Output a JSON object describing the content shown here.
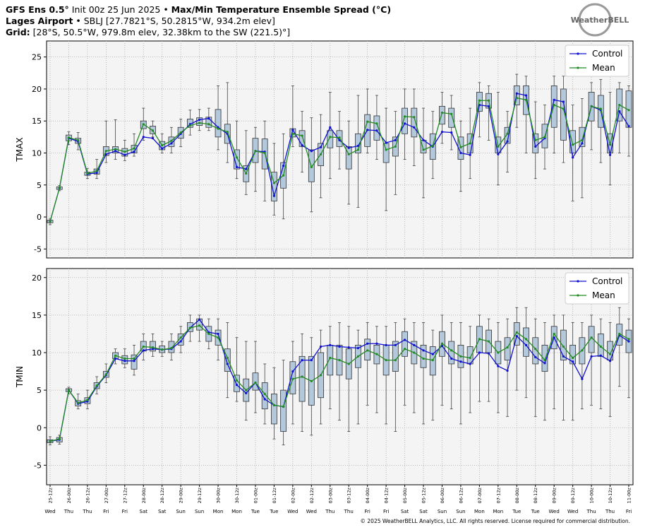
{
  "header": {
    "line1": [
      "GFS Ens 0.5°",
      " Init 00z 25 Jun 2025 • ",
      "Max/Min Temperature Ensemble Spread (°C)"
    ],
    "line2": [
      "Lages Airport",
      " • SBLJ [27.7821°S, 50.2815°W, 934.2m elev]"
    ],
    "line3": [
      "Grid:",
      " [28°S, 50.5°W, 979.8m elev, 32.38km to the SW (221.5)°]"
    ],
    "logo": "WeatherBELL"
  },
  "footer": "© 2025 WeatherBELL Analytics, LLC. All rights reserved. License required for commercial distribution.",
  "chart_data": [
    {
      "type": "box",
      "ylabel": "TMAX",
      "ylim": [
        -6.4,
        27.5
      ],
      "yticks": [
        -5,
        0,
        5,
        10,
        15,
        20,
        25
      ],
      "grid": true,
      "legend": "upper right",
      "boxes": {
        "color": "#b4c8dc",
        "whisker_low": [
          -1.2,
          4.1,
          11.3,
          10.5,
          6.0,
          6.0,
          8.5,
          9.0,
          8.8,
          9.5,
          12.0,
          12.5,
          10.0,
          10.0,
          11.0,
          12.8,
          13.5,
          13.5,
          10.5,
          8.5,
          6.0,
          3.5,
          4.0,
          2.5,
          0.3,
          -0.3,
          11.0,
          7.0,
          0.8,
          3.0,
          6.0,
          7.5,
          2.0,
          1.5,
          10.0,
          9.0,
          1.0,
          3.5,
          9.0,
          8.0,
          3.0,
          6.0,
          11.5,
          10.5,
          4.0,
          6.0,
          12.5,
          12.0,
          5.0,
          7.0,
          14.0,
          10.0,
          6.0,
          7.5,
          10.0,
          8.5,
          2.5,
          3.0,
          10.5,
          8.5,
          5.0,
          10.0,
          9.5
        ],
        "q1": [
          -0.9,
          4.3,
          11.9,
          11.5,
          6.5,
          6.7,
          9.6,
          10.0,
          9.5,
          10.0,
          13.8,
          13.0,
          10.5,
          11.0,
          12.3,
          14.0,
          14.3,
          14.0,
          12.5,
          11.5,
          7.5,
          5.5,
          8.5,
          7.5,
          2.5,
          4.5,
          12.5,
          11.0,
          5.5,
          8.0,
          10.8,
          11.0,
          7.5,
          10.0,
          11.0,
          12.0,
          8.5,
          9.5,
          13.0,
          12.5,
          10.0,
          9.0,
          14.5,
          14.0,
          9.0,
          10.0,
          16.5,
          17.0,
          10.0,
          11.5,
          17.5,
          16.0,
          10.0,
          10.8,
          14.0,
          12.0,
          10.0,
          11.0,
          15.0,
          14.0,
          10.0,
          15.0,
          14.0
        ],
        "q3": [
          -0.5,
          4.7,
          12.8,
          12.3,
          7.0,
          7.5,
          11.0,
          11.0,
          10.7,
          11.2,
          15.0,
          14.2,
          11.8,
          12.5,
          14.0,
          15.3,
          15.5,
          15.6,
          16.8,
          14.5,
          10.5,
          8.0,
          12.3,
          12.2,
          7.0,
          8.5,
          13.8,
          13.5,
          10.5,
          11.5,
          13.5,
          13.5,
          11.0,
          13.0,
          16.0,
          15.8,
          11.5,
          12.5,
          17.0,
          17.0,
          12.0,
          13.0,
          17.3,
          17.0,
          12.5,
          13.0,
          19.5,
          19.3,
          12.5,
          14.0,
          20.5,
          20.5,
          13.0,
          14.5,
          20.5,
          20.0,
          13.5,
          14.0,
          19.5,
          19.0,
          13.0,
          20.0,
          19.7
        ],
        "whisker_high": [
          -0.3,
          4.9,
          13.3,
          13.2,
          7.6,
          9.0,
          15.0,
          15.2,
          12.0,
          13.0,
          17.0,
          15.0,
          13.0,
          14.0,
          15.3,
          16.7,
          16.8,
          17.0,
          20.5,
          21.0,
          15.0,
          13.5,
          14.0,
          15.0,
          11.5,
          13.0,
          20.5,
          16.5,
          15.5,
          16.0,
          19.5,
          16.5,
          15.0,
          19.0,
          20.0,
          19.0,
          17.0,
          16.5,
          20.0,
          20.0,
          17.0,
          16.5,
          19.5,
          19.0,
          15.0,
          17.0,
          21.0,
          20.5,
          19.5,
          16.5,
          22.3,
          22.0,
          18.0,
          17.5,
          22.0,
          22.0,
          17.5,
          18.5,
          21.0,
          21.5,
          19.5,
          21.0,
          20.5
        ]
      },
      "series": [
        {
          "name": "Control",
          "color": "#1010d0",
          "values": [
            -0.7,
            4.5,
            12.3,
            11.8,
            6.7,
            6.9,
            9.8,
            10.3,
            9.7,
            10.2,
            12.5,
            12.3,
            10.7,
            11.5,
            13.0,
            14.5,
            15.2,
            15.4,
            14.0,
            13.0,
            7.8,
            7.5,
            10.3,
            10.2,
            3.3,
            8.0,
            13.6,
            11.2,
            10.3,
            10.9,
            14.0,
            12.0,
            10.8,
            11.1,
            13.6,
            13.5,
            11.6,
            12.0,
            14.6,
            14.0,
            12.0,
            11.0,
            13.3,
            13.2,
            10.0,
            9.7,
            17.5,
            17.3,
            9.8,
            11.8,
            19.3,
            19.0,
            11.0,
            12.3,
            18.3,
            18.0,
            9.3,
            11.5,
            17.3,
            16.7,
            9.7,
            16.5,
            14.2
          ]
        },
        {
          "name": "Mean",
          "color": "#228b22",
          "values": [
            -0.7,
            4.5,
            12.4,
            12.0,
            6.8,
            7.2,
            10.3,
            10.6,
            10.2,
            10.7,
            14.5,
            13.5,
            11.2,
            11.9,
            13.2,
            14.3,
            14.7,
            14.5,
            13.8,
            13.3,
            9.3,
            6.8,
            10.3,
            10.0,
            5.3,
            6.5,
            13.0,
            12.7,
            7.8,
            9.8,
            12.5,
            12.4,
            9.8,
            10.5,
            14.9,
            14.6,
            10.5,
            11.0,
            15.7,
            15.6,
            10.5,
            11.1,
            16.3,
            16.1,
            10.9,
            11.5,
            18.2,
            18.2,
            11.0,
            13.0,
            18.6,
            18.3,
            12.0,
            12.5,
            17.5,
            16.9,
            11.3,
            12.0,
            17.3,
            16.9,
            11.3,
            17.5,
            16.7
          ]
        }
      ]
    },
    {
      "type": "box",
      "ylabel": "TMIN",
      "ylim": [
        -7.6,
        21.2
      ],
      "yticks": [
        -5,
        0,
        5,
        10,
        15,
        20
      ],
      "grid": true,
      "legend": "upper right",
      "categories": [
        "25-12z",
        null,
        "26-00z",
        null,
        "26-12z",
        null,
        "27-00z",
        null,
        "27-12z",
        null,
        "28-00z",
        null,
        "28-12z",
        null,
        "29-00z",
        null,
        "29-12z",
        null,
        "30-00z",
        null,
        "30-12z",
        null,
        "01-00z",
        null,
        "01-12z",
        null,
        "02-00z",
        null,
        "02-12z",
        null,
        "03-00z",
        null,
        "03-12z",
        null,
        "04-00z",
        null,
        "04-12z",
        null,
        "05-00z",
        null,
        "05-12z",
        null,
        "06-00z",
        null,
        "06-12z",
        null,
        "07-00z",
        null,
        "07-12z",
        null,
        "08-00z",
        null,
        "08-12z",
        null,
        "09-00z",
        null,
        "09-12z",
        null,
        "10-00z",
        null,
        "10-12z",
        null,
        "11-00z"
      ],
      "days": [
        "Wed",
        null,
        "Thu",
        null,
        "Thu",
        null,
        "Fri",
        null,
        "Fri",
        null,
        "Sat",
        null,
        "Sat",
        null,
        "Sun",
        null,
        "Sun",
        null,
        "Mon",
        null,
        "Mon",
        null,
        "Tue",
        null,
        "Tue",
        null,
        "Wed",
        null,
        "Wed",
        null,
        "Thu",
        null,
        "Thu",
        null,
        "Fri",
        null,
        "Fri",
        null,
        "Sat",
        null,
        "Sat",
        null,
        "Sun",
        null,
        "Sun",
        null,
        "Mon",
        null,
        "Mon",
        null,
        "Tue",
        null,
        "Tue",
        null,
        "Wed",
        null,
        "Wed",
        null,
        "Thu",
        null,
        "Thu",
        null,
        "Fri"
      ],
      "boxes": {
        "color": "#b4c8dc",
        "whisker_low": [
          -2.3,
          -2.2,
          4.5,
          2.5,
          2.5,
          4.5,
          6.0,
          8.5,
          8.0,
          7.0,
          9.0,
          9.5,
          9.5,
          9.0,
          10.0,
          11.5,
          11.5,
          10.5,
          9.0,
          4.0,
          3.5,
          1.0,
          2.0,
          0.5,
          -1.5,
          -2.3,
          0.5,
          -0.5,
          -1.0,
          0.5,
          2.5,
          1.0,
          -0.5,
          0.5,
          3.0,
          2.0,
          0.5,
          -0.5,
          3.0,
          2.0,
          0.5,
          1.0,
          3.0,
          2.5,
          0.5,
          2.0,
          3.5,
          3.5,
          2.0,
          1.5,
          5.0,
          4.0,
          1.5,
          1.0,
          2.5,
          1.0,
          1.0,
          2.5,
          3.0,
          2.5,
          1.5,
          5.5,
          4.0
        ],
        "q1": [
          -2.0,
          -1.9,
          4.8,
          2.9,
          3.2,
          5.2,
          6.7,
          9.2,
          8.5,
          7.8,
          10.2,
          10.2,
          10.0,
          10.0,
          11.0,
          12.8,
          13.0,
          11.5,
          11.0,
          7.5,
          4.8,
          3.5,
          5.0,
          2.5,
          0.5,
          -0.5,
          4.5,
          3.5,
          3.0,
          4.0,
          7.0,
          7.0,
          6.5,
          8.0,
          9.0,
          8.5,
          7.0,
          7.5,
          9.5,
          8.5,
          8.0,
          7.0,
          9.5,
          8.5,
          8.0,
          8.5,
          10.0,
          10.0,
          8.5,
          9.0,
          11.0,
          9.5,
          8.5,
          7.5,
          10.5,
          9.0,
          8.5,
          8.5,
          10.0,
          9.5,
          9.0,
          11.0,
          10.0
        ],
        "q3": [
          -1.6,
          -1.3,
          5.2,
          3.6,
          4.0,
          6.0,
          7.5,
          10.0,
          9.6,
          9.7,
          11.5,
          11.5,
          10.9,
          11.5,
          12.5,
          14.0,
          14.5,
          13.5,
          13.0,
          10.5,
          7.0,
          6.5,
          7.3,
          6.0,
          4.5,
          5.0,
          8.8,
          9.5,
          9.5,
          10.0,
          11.0,
          11.0,
          10.5,
          11.0,
          11.8,
          11.0,
          11.0,
          11.5,
          12.8,
          11.5,
          11.0,
          10.8,
          12.8,
          11.5,
          11.0,
          10.8,
          13.5,
          13.0,
          11.5,
          12.0,
          14.0,
          13.3,
          12.0,
          11.0,
          13.5,
          13.0,
          11.0,
          12.0,
          13.5,
          12.5,
          11.5,
          13.8,
          13.0
        ],
        "whisker_high": [
          -1.2,
          -1.0,
          5.4,
          4.5,
          5.0,
          6.8,
          8.5,
          10.5,
          10.5,
          11.0,
          12.5,
          12.5,
          11.5,
          12.5,
          13.5,
          15.0,
          15.0,
          14.5,
          14.5,
          14.0,
          12.0,
          11.5,
          11.5,
          8.5,
          8.0,
          9.0,
          11.5,
          12.5,
          12.0,
          13.0,
          13.5,
          14.0,
          13.5,
          13.0,
          14.0,
          13.5,
          13.5,
          14.0,
          14.5,
          14.0,
          14.0,
          13.0,
          15.0,
          14.0,
          14.0,
          13.5,
          15.0,
          14.5,
          14.0,
          14.5,
          16.0,
          16.0,
          14.5,
          14.0,
          15.0,
          15.0,
          14.0,
          14.0,
          15.0,
          14.5,
          14.0,
          16.0,
          14.5
        ]
      },
      "series": [
        {
          "name": "Control",
          "color": "#1010d0",
          "values": [
            -1.8,
            -1.6,
            5.0,
            3.2,
            3.5,
            5.5,
            7.0,
            9.2,
            8.9,
            8.9,
            10.3,
            10.5,
            10.4,
            10.5,
            11.5,
            13.3,
            14.4,
            12.7,
            12.5,
            8.5,
            5.7,
            4.6,
            6.0,
            3.8,
            3.0,
            2.8,
            7.5,
            9.0,
            9.0,
            10.8,
            11.0,
            10.8,
            10.7,
            10.6,
            11.2,
            11.2,
            11.0,
            11.0,
            11.7,
            11.0,
            10.3,
            9.8,
            10.9,
            9.2,
            8.8,
            8.5,
            10.0,
            9.9,
            8.2,
            7.6,
            12.2,
            11.0,
            9.4,
            8.6,
            12.0,
            9.5,
            8.8,
            6.5,
            9.5,
            9.6,
            8.9,
            12.3,
            11.5
          ]
        },
        {
          "name": "Mean",
          "color": "#228b22",
          "values": [
            -1.8,
            -1.5,
            5.0,
            3.3,
            3.7,
            5.6,
            7.1,
            9.6,
            9.2,
            9.2,
            10.8,
            10.7,
            10.4,
            10.6,
            12.0,
            13.3,
            13.6,
            12.5,
            12.0,
            9.3,
            6.3,
            5.0,
            6.0,
            4.5,
            3.0,
            2.8,
            6.5,
            6.8,
            6.2,
            7.0,
            9.3,
            9.0,
            8.5,
            9.5,
            10.3,
            9.8,
            9.0,
            9.0,
            10.5,
            10.0,
            9.2,
            9.0,
            11.2,
            10.3,
            9.5,
            9.3,
            11.8,
            11.5,
            10.0,
            10.7,
            12.7,
            11.8,
            10.5,
            9.0,
            12.5,
            10.8,
            9.3,
            10.3,
            12.0,
            10.8,
            9.8,
            12.5,
            11.8
          ]
        }
      ]
    }
  ]
}
